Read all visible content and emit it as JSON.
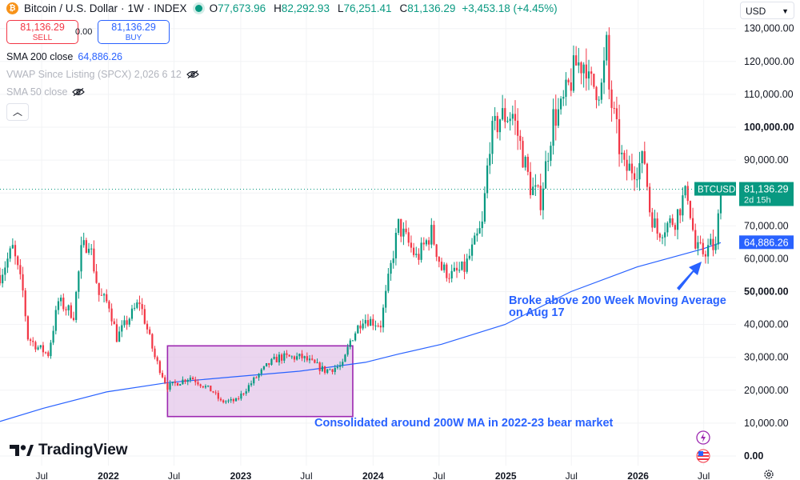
{
  "header": {
    "symbol_name": "Bitcoin / U.S. Dollar",
    "interval": "1W",
    "exchange": "INDEX",
    "open_label": "O",
    "open": "77,673.96",
    "high_label": "H",
    "high": "82,292.93",
    "low_label": "L",
    "low": "76,251.41",
    "close_label": "C",
    "close": "81,136.29",
    "change": "+3,453.18 (+4.45%)"
  },
  "trade": {
    "sell_price": "81,136.29",
    "sell_label": "SELL",
    "spread": "0.00",
    "buy_price": "81,136.29",
    "buy_label": "BUY"
  },
  "indicators": {
    "sma200_name": "SMA 200 close",
    "sma200_value": "64,886.26",
    "vwap_name": "VWAP Since Listing (SPCX) 2,026 6 12",
    "sma50_name": "SMA 50 close"
  },
  "collapse_icon": "chevron-up-icon",
  "currency": "USD",
  "brand": "TradingView",
  "price_tags": {
    "symbol": "BTCUSD",
    "price": "81,136.29",
    "countdown": "2d 15h",
    "sma": "64,886.26"
  },
  "annotations": {
    "breakout_line1": "Broke above 200 Week Moving Average",
    "breakout_line2": "on Aug 17",
    "consolidation": "Consolidated around 200W MA in 2022-23 bear market"
  },
  "colors": {
    "up": "#089981",
    "down": "#f23645",
    "ma": "#2962ff",
    "box_fill": "#e1bee7",
    "box_stroke": "#9c27b0",
    "annotation": "#2962ff"
  },
  "chart_data": {
    "type": "candlestick",
    "symbol": "BTCUSD",
    "interval": "1W",
    "ylim": [
      0,
      135000
    ],
    "y_ticks": [
      "0.00",
      "10,000.00",
      "20,000.00",
      "30,000.00",
      "40,000.00",
      "50,000.00",
      "60,000.00",
      "70,000.00",
      "80,000.00",
      "90,000.00",
      "100,000.00",
      "110,000.00",
      "120,000.00",
      "130,000.00"
    ],
    "y_tick_values": [
      0,
      10000,
      20000,
      30000,
      40000,
      50000,
      60000,
      70000,
      80000,
      90000,
      100000,
      110000,
      120000,
      130000
    ],
    "x_ticks": [
      "Jul",
      "2022",
      "Jul",
      "2023",
      "Jul",
      "2024",
      "Jul",
      "2025",
      "Jul",
      "2026",
      "Jul"
    ],
    "x_tick_dates": [
      "2021-07-01",
      "2022-01-01",
      "2022-07-01",
      "2023-01-01",
      "2023-07-01",
      "2024-01-01",
      "2024-07-01",
      "2025-01-01",
      "2025-07-01",
      "2026-01-01",
      "2026-07-01"
    ],
    "x_range": [
      "2021-03-08",
      "2026-09-28"
    ],
    "price_path": [
      [
        "2021-03-08",
        55000
      ],
      [
        "2021-04-12",
        63000
      ],
      [
        "2021-05-10",
        50000
      ],
      [
        "2021-05-24",
        36000
      ],
      [
        "2021-06-21",
        33000
      ],
      [
        "2021-07-19",
        31000
      ],
      [
        "2021-08-16",
        47000
      ],
      [
        "2021-09-06",
        45000
      ],
      [
        "2021-09-27",
        43000
      ],
      [
        "2021-10-18",
        62000
      ],
      [
        "2021-11-08",
        66000
      ],
      [
        "2021-12-06",
        49000
      ],
      [
        "2022-01-03",
        46000
      ],
      [
        "2022-01-24",
        36000
      ],
      [
        "2022-03-28",
        47000
      ],
      [
        "2022-05-09",
        30000
      ],
      [
        "2022-06-13",
        21000
      ],
      [
        "2022-08-15",
        24000
      ],
      [
        "2022-10-17",
        19500
      ],
      [
        "2022-11-07",
        16500
      ],
      [
        "2022-12-19",
        16800
      ],
      [
        "2023-02-13",
        24000
      ],
      [
        "2023-03-20",
        28000
      ],
      [
        "2023-04-17",
        30000
      ],
      [
        "2023-06-19",
        30000
      ],
      [
        "2023-08-21",
        26000
      ],
      [
        "2023-10-09",
        27500
      ],
      [
        "2023-10-30",
        35000
      ],
      [
        "2023-12-04",
        42000
      ],
      [
        "2024-01-22",
        40000
      ],
      [
        "2024-02-26",
        62000
      ],
      [
        "2024-03-11",
        70000
      ],
      [
        "2024-05-01",
        60000
      ],
      [
        "2024-06-10",
        68000
      ],
      [
        "2024-07-08",
        57000
      ],
      [
        "2024-08-05",
        55000
      ],
      [
        "2024-09-09",
        57000
      ],
      [
        "2024-10-28",
        70000
      ],
      [
        "2024-11-18",
        96000
      ],
      [
        "2024-12-16",
        103000
      ],
      [
        "2025-01-20",
        104000
      ],
      [
        "2025-03-10",
        82000
      ],
      [
        "2025-04-07",
        78000
      ],
      [
        "2025-05-12",
        103000
      ],
      [
        "2025-06-02",
        105000
      ],
      [
        "2025-07-14",
        119000
      ],
      [
        "2025-08-11",
        120000
      ],
      [
        "2025-08-18",
        113000
      ],
      [
        "2025-09-22",
        112000
      ],
      [
        "2025-10-06",
        124000
      ],
      [
        "2025-10-13",
        111000
      ],
      [
        "2025-11-10",
        94000
      ],
      [
        "2025-11-24",
        87000
      ],
      [
        "2025-12-29",
        88000
      ],
      [
        "2026-01-19",
        90000
      ],
      [
        "2026-02-02",
        75000
      ],
      [
        "2026-02-23",
        68000
      ],
      [
        "2026-03-16",
        70000
      ],
      [
        "2026-04-13",
        72000
      ],
      [
        "2026-05-04",
        78000
      ],
      [
        "2026-05-18",
        80000
      ],
      [
        "2026-06-08",
        63000
      ],
      [
        "2026-06-29",
        62000
      ],
      [
        "2026-07-20",
        64000
      ],
      [
        "2026-08-03",
        63000
      ],
      [
        "2026-08-17",
        81136.29
      ]
    ],
    "sma_200_close": {
      "name": "SMA 200 close",
      "last_value": 64886.26,
      "points": [
        [
          "2021-03-08",
          10500
        ],
        [
          "2021-07-05",
          14500
        ],
        [
          "2021-12-27",
          19500
        ],
        [
          "2022-06-13",
          22300
        ],
        [
          "2022-12-26",
          24200
        ],
        [
          "2023-06-12",
          25800
        ],
        [
          "2023-12-11",
          28500
        ],
        [
          "2024-03-11",
          31000
        ],
        [
          "2024-07-08",
          34000
        ],
        [
          "2024-12-30",
          40000
        ],
        [
          "2025-06-30",
          50000
        ],
        [
          "2025-12-29",
          57500
        ],
        [
          "2026-06-29",
          63000
        ],
        [
          "2026-08-17",
          64886.26
        ]
      ]
    },
    "last_close": 81136.29
  }
}
